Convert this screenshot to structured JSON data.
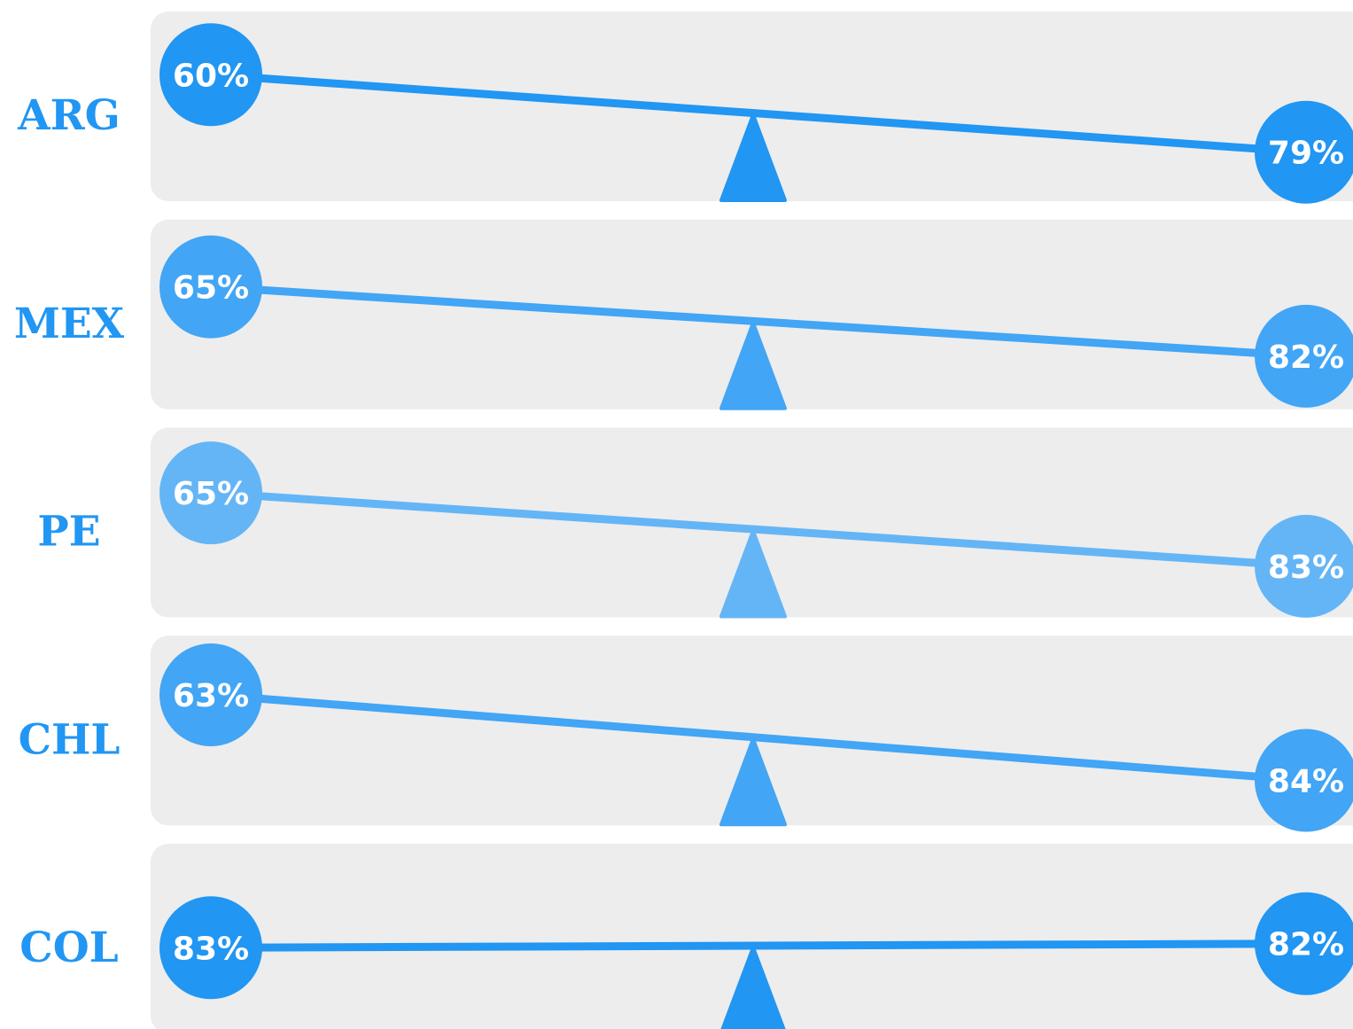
{
  "chart_data": {
    "type": "seesaw",
    "label_color": "#2196F3",
    "panel_color": "#EDEDED",
    "rows": [
      {
        "label": "ARG",
        "left": 60,
        "right": 79,
        "left_text": "60%",
        "right_text": "79%",
        "color": "#2196F3"
      },
      {
        "label": "MEX",
        "left": 65,
        "right": 82,
        "left_text": "65%",
        "right_text": "82%",
        "color": "#42A5F5"
      },
      {
        "label": "PE",
        "left": 65,
        "right": 83,
        "left_text": "65%",
        "right_text": "83%",
        "color": "#64B5F6"
      },
      {
        "label": "CHL",
        "left": 63,
        "right": 84,
        "left_text": "63%",
        "right_text": "84%",
        "color": "#42A5F5"
      },
      {
        "label": "COL",
        "left": 83,
        "right": 82,
        "left_text": "83%",
        "right_text": "82%",
        "color": "#2196F3"
      }
    ]
  }
}
